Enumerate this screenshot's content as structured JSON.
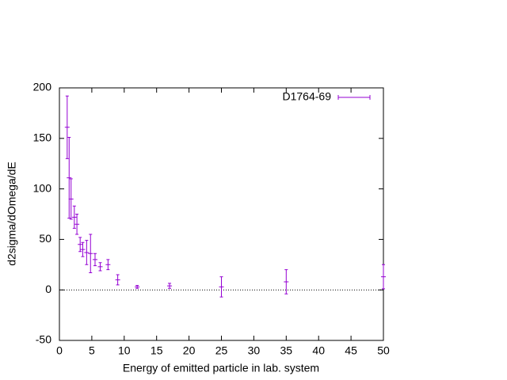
{
  "chart_data": {
    "type": "errorbar",
    "xlabel": "Energy of emitted particle in lab. system",
    "ylabel": "d2sigma/dOmega/dE",
    "x": [
      1.2,
      1.5,
      1.8,
      2.3,
      2.7,
      3.2,
      3.6,
      4.2,
      4.8,
      5.5,
      6.3,
      7.5,
      9,
      12,
      17,
      25,
      35,
      50
    ],
    "series": [
      {
        "name": "D1764-69",
        "color": "#9400d3",
        "values": [
          161,
          111,
          90,
          72,
          65,
          45,
          40,
          37,
          36,
          30,
          23,
          25,
          10,
          3,
          4,
          3,
          8,
          13
        ],
        "errors": [
          31,
          40,
          20,
          11,
          10,
          7,
          7,
          12,
          19,
          6,
          4,
          5,
          5,
          1.5,
          2.5,
          10,
          12,
          12
        ]
      }
    ],
    "xlim": [
      0,
      50
    ],
    "xticks": [
      0,
      5,
      10,
      15,
      20,
      25,
      30,
      35,
      40,
      45,
      50
    ],
    "ylim": [
      -50,
      200
    ],
    "yticks": [
      -50,
      0,
      50,
      100,
      150,
      200
    ],
    "zero_line": true,
    "legend": "top-right"
  }
}
